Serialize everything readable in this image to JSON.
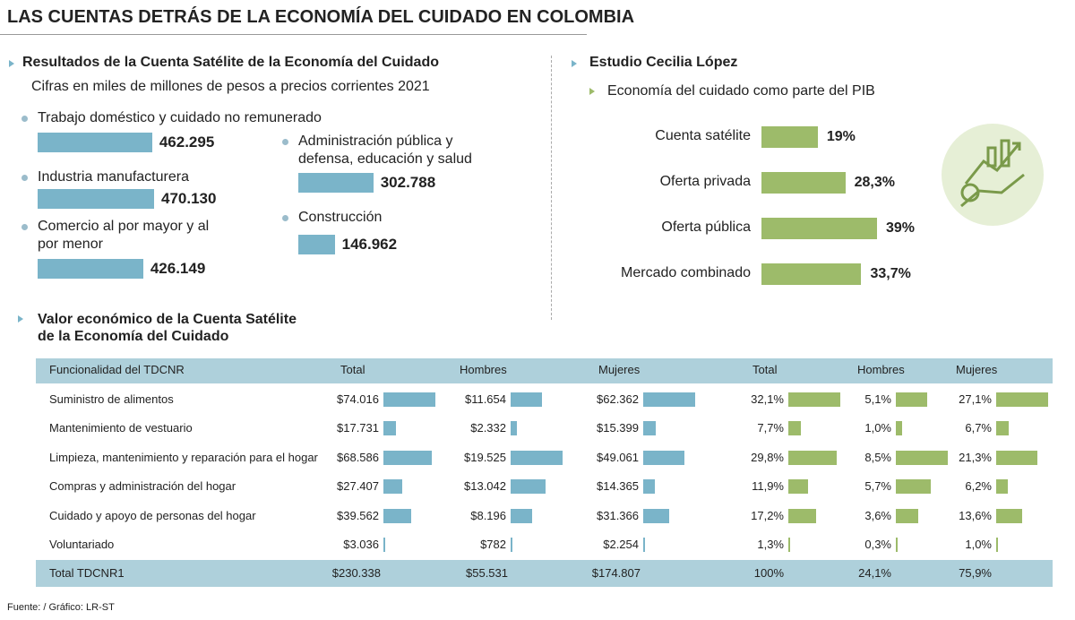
{
  "title": "LAS CUENTAS DETRÁS DE LA ECONOMÍA DEL CUIDADO EN COLOMBIA",
  "source": "Fuente: / Gráfico: LR-ST",
  "chart_data": [
    {
      "type": "bar",
      "title": "Resultados de la Cuenta Satélite de la Economía del Cuidado",
      "subtitle": "Cifras en miles de millones de pesos a precios corrientes 2021",
      "categories": [
        "Trabajo doméstico y cuidado no remunerado",
        "Industria manufacturera",
        "Comercio al por mayor y al por menor",
        "Administración pública y defensa, educación y salud",
        "Construcción"
      ],
      "values": [
        462295,
        470130,
        426149,
        302788,
        146962
      ],
      "value_labels": [
        "462.295",
        "470.130",
        "426.149",
        "302.788",
        "146.962"
      ],
      "color": "#7ab4c9"
    },
    {
      "type": "bar",
      "title": "Estudio Cecilia López",
      "subtitle": "Economía del cuidado como parte del PIB",
      "categories": [
        "Cuenta satélite",
        "Oferta privada",
        "Oferta pública",
        "Mercado combinado"
      ],
      "values": [
        19,
        28.3,
        39,
        33.7
      ],
      "value_labels": [
        "19%",
        "28,3%",
        "39%",
        "33,7%"
      ],
      "color": "#9dbb6a"
    },
    {
      "type": "table",
      "title": "Valor económico de la Cuenta Satélite de la Economía del Cuidado",
      "category_label": "Funcionalidad del TDCNR",
      "categories": [
        "Suministro de alimentos",
        "Mantenimiento de vestuario",
        "Limpieza, mantenimiento y reparación para el hogar",
        "Compras y administración del hogar",
        "Cuidado y apoyo de personas del hogar",
        "Voluntariado"
      ],
      "total_name": "Total TDCNR1",
      "series": [
        {
          "name": "Total",
          "color": "#7ab4c9",
          "values": [
            74016,
            17731,
            68586,
            27407,
            39562,
            3036
          ],
          "value_labels": [
            "$74.016",
            "$17.731",
            "$68.586",
            "$27.407",
            "$39.562",
            "$3.036"
          ],
          "total": 230338,
          "total_label": "$230.338"
        },
        {
          "name": "Hombres",
          "color": "#7ab4c9",
          "values": [
            11654,
            2332,
            19525,
            13042,
            8196,
            782
          ],
          "value_labels": [
            "$11.654",
            "$2.332",
            "$19.525",
            "$13.042",
            "$8.196",
            "$782"
          ],
          "total": 55531,
          "total_label": "$55.531"
        },
        {
          "name": "Mujeres",
          "color": "#7ab4c9",
          "values": [
            62362,
            15399,
            49061,
            14365,
            31366,
            2254
          ],
          "value_labels": [
            "$62.362",
            "$15.399",
            "$49.061",
            "$14.365",
            "$31.366",
            "$2.254"
          ],
          "total": 174807,
          "total_label": "$174.807"
        },
        {
          "name": "Total",
          "color": "#9dbb6a",
          "values": [
            32.1,
            7.7,
            29.8,
            11.9,
            17.2,
            1.3
          ],
          "value_labels": [
            "32,1%",
            "7,7%",
            "29,8%",
            "11,9%",
            "17,2%",
            "1,3%"
          ],
          "total": 100,
          "total_label": "100%"
        },
        {
          "name": "Hombres",
          "color": "#9dbb6a",
          "values": [
            5.1,
            1.0,
            8.5,
            5.7,
            3.6,
            0.3
          ],
          "value_labels": [
            "5,1%",
            "1,0%",
            "8,5%",
            "5,7%",
            "3,6%",
            "0,3%"
          ],
          "total": 24.1,
          "total_label": "24,1%"
        },
        {
          "name": "Mujeres",
          "color": "#9dbb6a",
          "values": [
            27.1,
            6.7,
            21.3,
            6.2,
            13.6,
            1.0
          ],
          "value_labels": [
            "27,1%",
            "6,7%",
            "21,3%",
            "6,2%",
            "13,6%",
            "1,0%"
          ],
          "total": 75.9,
          "total_label": "75,9%"
        }
      ]
    }
  ]
}
